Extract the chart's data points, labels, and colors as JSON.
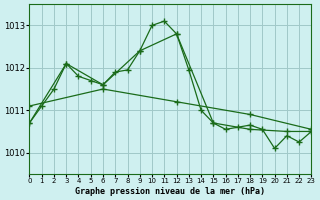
{
  "title": "Graphe pression niveau de la mer (hPa)",
  "xlabel": "Graphe pression niveau de la mer (hPa)",
  "background_color": "#cff0f0",
  "grid_color": "#a0c8c8",
  "line_color": "#1a6b1a",
  "xlim": [
    0,
    23
  ],
  "ylim": [
    1009.5,
    1013.5
  ],
  "yticks": [
    1010,
    1011,
    1012,
    1013
  ],
  "xticks": [
    0,
    1,
    2,
    3,
    4,
    5,
    6,
    7,
    8,
    9,
    10,
    11,
    12,
    13,
    14,
    15,
    16,
    17,
    18,
    19,
    20,
    21,
    22,
    23
  ],
  "series1": {
    "x": [
      0,
      1,
      2,
      3,
      4,
      5,
      6,
      7,
      8,
      9,
      10,
      11,
      12,
      13,
      14,
      15,
      16,
      17,
      18,
      19,
      20,
      21,
      22,
      23
    ],
    "y": [
      1010.7,
      1011.1,
      1011.5,
      1012.1,
      1011.8,
      1011.7,
      1011.6,
      1011.9,
      1011.95,
      1012.4,
      1013.0,
      1013.1,
      1012.8,
      1011.95,
      1011.0,
      1010.7,
      1010.55,
      1010.6,
      1010.65,
      1010.55,
      1010.1,
      1010.4,
      1010.25,
      1010.5
    ]
  },
  "series2": {
    "x": [
      0,
      3,
      6,
      9,
      12,
      15,
      18,
      21,
      23
    ],
    "y": [
      1010.7,
      1012.1,
      1011.6,
      1012.4,
      1012.8,
      1010.7,
      1010.55,
      1010.5,
      1010.5
    ]
  },
  "series3": {
    "x": [
      0,
      6,
      12,
      18,
      23
    ],
    "y": [
      1011.1,
      1011.5,
      1011.2,
      1010.9,
      1010.55
    ]
  }
}
